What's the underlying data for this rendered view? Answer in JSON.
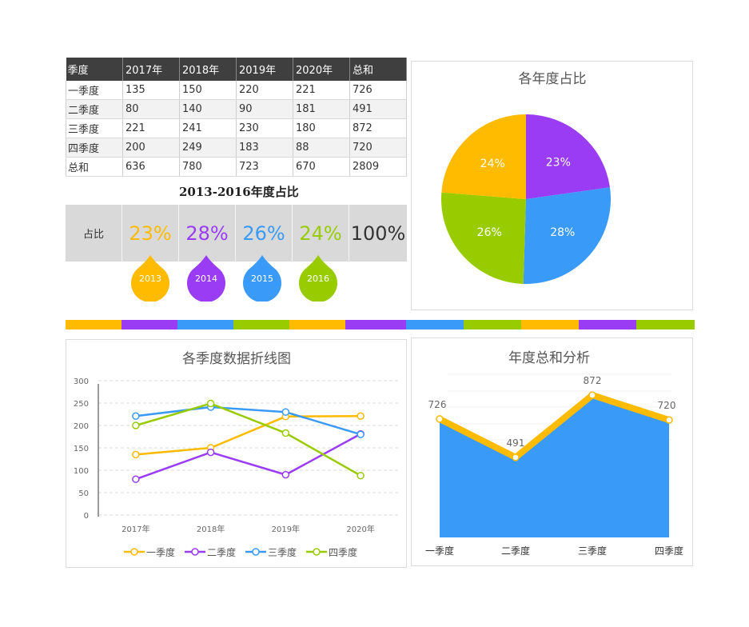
{
  "table": {
    "headers": [
      "季度",
      "2017年",
      "2018年",
      "2019年",
      "2020年",
      "总和"
    ],
    "rows": [
      [
        "一季度",
        "135",
        "150",
        "220",
        "221",
        "726"
      ],
      [
        "二季度",
        "80",
        "140",
        "90",
        "181",
        "491"
      ],
      [
        "三季度",
        "221",
        "241",
        "230",
        "180",
        "872"
      ],
      [
        "四季度",
        "200",
        "249",
        "183",
        "88",
        "720"
      ],
      [
        "总和",
        "636",
        "780",
        "723",
        "670",
        "2809"
      ]
    ]
  },
  "share_section": {
    "title": "2013-2016年度占比",
    "label": "占比",
    "items": [
      {
        "value": "23%",
        "year": "2013",
        "color": "#ffbb00"
      },
      {
        "value": "28%",
        "year": "2014",
        "color": "#9b3cf5"
      },
      {
        "value": "26%",
        "year": "2015",
        "color": "#3a9af8"
      },
      {
        "value": "24%",
        "year": "2016",
        "color": "#99cc00"
      }
    ],
    "total": "100%"
  },
  "color_bar": [
    "#ffbb00",
    "#9b3cf5",
    "#3a9af8",
    "#99cc00",
    "#ffbb00",
    "#9b3cf5",
    "#3a9af8",
    "#99cc00",
    "#ffbb00",
    "#9b3cf5",
    "#99cc00"
  ],
  "chart_data": [
    {
      "type": "pie",
      "title": "各年度占比",
      "slices": [
        {
          "label": "23%",
          "value": 23,
          "color": "#9b3cf5"
        },
        {
          "label": "28%",
          "value": 28,
          "color": "#3a9af8"
        },
        {
          "label": "26%",
          "value": 26,
          "color": "#99cc00"
        },
        {
          "label": "24%",
          "value": 24,
          "color": "#ffbb00"
        }
      ]
    },
    {
      "type": "line",
      "title": "各季度数据折线图",
      "categories": [
        "2017年",
        "2018年",
        "2019年",
        "2020年"
      ],
      "ylim": [
        0,
        300
      ],
      "yticks": [
        0,
        50,
        100,
        150,
        200,
        250,
        300
      ],
      "grid": true,
      "legend_position": "bottom",
      "series": [
        {
          "name": "一季度",
          "values": [
            135,
            150,
            220,
            221
          ],
          "color": "#ffbb00"
        },
        {
          "name": "二季度",
          "values": [
            80,
            140,
            90,
            181
          ],
          "color": "#9b3cf5"
        },
        {
          "name": "三季度",
          "values": [
            221,
            241,
            230,
            180
          ],
          "color": "#3a9af8"
        },
        {
          "name": "四季度",
          "values": [
            200,
            249,
            183,
            88
          ],
          "color": "#99cc00"
        }
      ]
    },
    {
      "type": "area",
      "title": "年度总和分析",
      "categories": [
        "一季度",
        "二季度",
        "三季度",
        "四季度"
      ],
      "values": [
        726,
        491,
        872,
        720
      ],
      "area_color": "#3a9af8",
      "line_color": "#ffbb00"
    }
  ]
}
